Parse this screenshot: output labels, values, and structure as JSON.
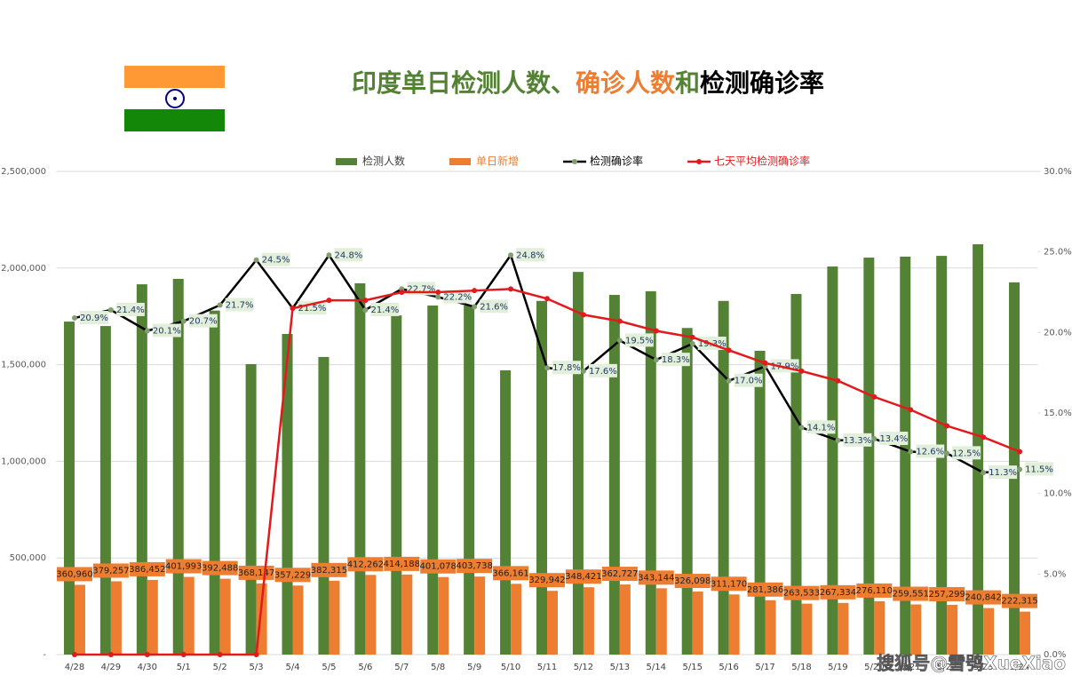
{
  "chart_data": {
    "type": "combo",
    "title_parts": [
      {
        "text": "印度单日检测人数、",
        "color": "#548235"
      },
      {
        "text": "确诊人数",
        "color": "#ed7d31"
      },
      {
        "text": "和",
        "color": "#548235"
      },
      {
        "text": "检测确诊率",
        "color": "#000000"
      }
    ],
    "watermark": "搜狐号@雪鸮XueXiao",
    "categories": [
      "4/28",
      "4/29",
      "4/30",
      "5/1",
      "5/2",
      "5/3",
      "5/4",
      "5/5",
      "5/6",
      "5/7",
      "5/8",
      "5/9",
      "5/10",
      "5/11",
      "5/12",
      "5/13",
      "5/14",
      "5/15",
      "5/16",
      "5/17",
      "5/18",
      "5/19",
      "5/20",
      "5/21",
      "5/22",
      "5/23",
      "5/24"
    ],
    "ylim": [
      0,
      2500000
    ],
    "yticks": [
      {
        "value": 0,
        "label": "-"
      },
      {
        "value": 500000,
        "label": "500,000"
      },
      {
        "value": 1000000,
        "label": "1,000,000"
      },
      {
        "value": 1500000,
        "label": "1,500,000"
      },
      {
        "value": 2000000,
        "label": "2,000,000"
      },
      {
        "value": 2500000,
        "label": "2,500,000"
      }
    ],
    "y2lim": [
      0,
      30
    ],
    "y2ticks": [
      {
        "value": 0,
        "label": "0.0%"
      },
      {
        "value": 5,
        "label": "5.0%"
      },
      {
        "value": 10,
        "label": "10.0%"
      },
      {
        "value": 15,
        "label": "15.0%"
      },
      {
        "value": 20,
        "label": "20.0%"
      },
      {
        "value": 25,
        "label": "25.0%"
      },
      {
        "value": 30,
        "label": "30.0%"
      }
    ],
    "grid": true,
    "series": [
      {
        "name": "检测人数",
        "type": "bar",
        "color": "#548235",
        "values": [
          1723000,
          1700000,
          1916000,
          1944000,
          1780000,
          1503000,
          1659000,
          1540000,
          1921000,
          1755000,
          1806000,
          1806000,
          1471000,
          1830000,
          1980000,
          1861000,
          1880000,
          1690000,
          1830000,
          1572000,
          1866000,
          2008000,
          2054000,
          2059000,
          2063000,
          2123000,
          1926000
        ]
      },
      {
        "name": "单日新增",
        "type": "bar",
        "color": "#ed7d31",
        "values": [
          360960,
          379257,
          386452,
          401993,
          392488,
          368147,
          357229,
          382315,
          412262,
          414188,
          401078,
          403738,
          366161,
          329942,
          348421,
          362727,
          343144,
          326098,
          311170,
          281386,
          263533,
          267334,
          276110,
          259551,
          257299,
          240842,
          222315
        ],
        "value_labels": [
          "360,960",
          "379,257",
          "386,452",
          "401,993",
          "392,488",
          "368,147",
          "357,229",
          "382,315",
          "412,262",
          "414,188",
          "401,078",
          "403,738",
          "366,161",
          "329,942",
          "348,421",
          "362,727",
          "343,144",
          "326,098",
          "311,170",
          "281,386",
          "263,533",
          "267,334",
          "276,110",
          "259,551",
          "257,299",
          "240,842",
          "222,315"
        ]
      },
      {
        "name": "检测确诊率",
        "type": "line",
        "axis": "y2",
        "color": "#000000",
        "values": [
          20.9,
          21.4,
          20.1,
          20.7,
          21.7,
          24.5,
          21.5,
          24.8,
          21.4,
          22.7,
          22.2,
          21.6,
          24.8,
          17.8,
          17.6,
          19.5,
          18.3,
          19.3,
          17.0,
          17.9,
          14.1,
          13.3,
          13.4,
          12.6,
          12.5,
          11.3,
          11.5
        ],
        "value_labels": [
          "20.9%",
          "21.4%",
          "20.1%",
          "20.7%",
          "21.7%",
          "24.5%",
          "21.5%",
          "24.8%",
          "21.4%",
          "22.7%",
          "22.2%",
          "21.6%",
          "24.8%",
          "17.8%",
          "17.6%",
          "19.5%",
          "18.3%",
          "19.3%",
          "17.0%",
          "17.9%",
          "14.1%",
          "13.3%",
          "13.4%",
          "12.6%",
          "12.5%",
          "11.3%",
          "11.5%"
        ]
      },
      {
        "name": "七天平均检测确诊率",
        "type": "line",
        "axis": "y2",
        "color": "#e31a1c",
        "values": [
          0,
          0,
          0,
          0,
          0,
          0,
          21.5,
          22.0,
          22.0,
          22.5,
          22.5,
          22.6,
          22.7,
          22.1,
          21.1,
          20.7,
          20.1,
          19.7,
          18.9,
          18.1,
          17.6,
          17.0,
          16.0,
          15.2,
          14.2,
          13.5,
          12.6
        ]
      }
    ]
  }
}
